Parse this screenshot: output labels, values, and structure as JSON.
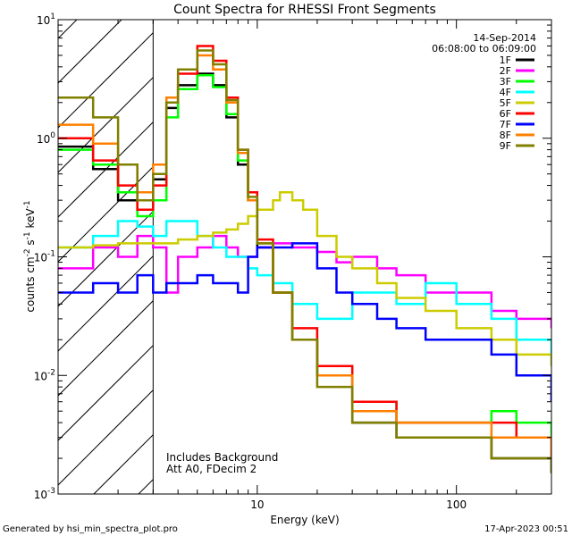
{
  "chart_data": {
    "type": "line",
    "title": "Count Spectra for RHESSI Front Segments",
    "xlabel": "Energy (keV)",
    "ylabel_parts": [
      "counts cm",
      "-2",
      " s",
      "-1",
      " keV",
      "-1"
    ],
    "x_scale": "log",
    "y_scale": "log",
    "xlim": [
      1.0,
      300.0
    ],
    "ylim": [
      0.001,
      10.0
    ],
    "x_tick_labels": [
      {
        "value": 10,
        "label": "10"
      },
      {
        "value": 100,
        "label": "100"
      }
    ],
    "y_tick_labels": [
      {
        "value": 10,
        "base": "10",
        "exp": "1"
      },
      {
        "value": 1,
        "base": "10",
        "exp": "0"
      },
      {
        "value": 0.1,
        "base": "10",
        "exp": "-1"
      },
      {
        "value": 0.01,
        "base": "10",
        "exp": "-2"
      },
      {
        "value": 0.001,
        "base": "10",
        "exp": "-3"
      }
    ],
    "date": "14-Sep-2014",
    "time_range": "06:08:00 to 06:09:00",
    "annotation_lines": [
      "Includes Background",
      "Att A0, FDecim 2"
    ],
    "excluded_region_max_keV": 3.0,
    "footer_left": "Generated by hsi_min_spectra_plot.pro",
    "footer_right": "17-Apr-2023 00:51",
    "series": [
      {
        "name": "1F",
        "color": "#000000",
        "points": [
          [
            1.0,
            0.85
          ],
          [
            1.5,
            0.55
          ],
          [
            2.0,
            0.3
          ],
          [
            2.5,
            0.25
          ],
          [
            3.0,
            0.45
          ],
          [
            3.5,
            1.8
          ],
          [
            4.0,
            2.8
          ],
          [
            5.0,
            3.5
          ],
          [
            6.0,
            2.8
          ],
          [
            7.0,
            1.5
          ],
          [
            8.0,
            0.6
          ],
          [
            9.0,
            0.3
          ],
          [
            10.0,
            0.12
          ],
          [
            12.0,
            0.05
          ],
          [
            15.0,
            0.02
          ],
          [
            20.0,
            0.01
          ],
          [
            30.0,
            0.004
          ],
          [
            50.0,
            0.003
          ],
          [
            70.0,
            0.003
          ],
          [
            100.0,
            0.003
          ],
          [
            150.0,
            0.002
          ],
          [
            200.0,
            0.002
          ],
          [
            300.0,
            0.0015
          ]
        ]
      },
      {
        "name": "2F",
        "color": "#ff00ff",
        "points": [
          [
            1.0,
            0.08
          ],
          [
            1.5,
            0.12
          ],
          [
            2.0,
            0.1
          ],
          [
            2.5,
            0.15
          ],
          [
            3.0,
            0.12
          ],
          [
            3.5,
            0.05
          ],
          [
            4.0,
            0.1
          ],
          [
            5.0,
            0.12
          ],
          [
            6.0,
            0.15
          ],
          [
            7.0,
            0.12
          ],
          [
            8.0,
            0.1
          ],
          [
            10.0,
            0.12
          ],
          [
            12.0,
            0.13
          ],
          [
            15.0,
            0.12
          ],
          [
            20.0,
            0.11
          ],
          [
            25.0,
            0.09
          ],
          [
            30.0,
            0.1
          ],
          [
            40.0,
            0.08
          ],
          [
            50.0,
            0.07
          ],
          [
            70.0,
            0.05
          ],
          [
            100.0,
            0.05
          ],
          [
            150.0,
            0.035
          ],
          [
            200.0,
            0.03
          ],
          [
            300.0,
            0.025
          ]
        ]
      },
      {
        "name": "3F",
        "color": "#00ff00",
        "points": [
          [
            1.0,
            0.8
          ],
          [
            1.5,
            0.6
          ],
          [
            2.0,
            0.35
          ],
          [
            2.5,
            0.22
          ],
          [
            3.0,
            0.3
          ],
          [
            3.5,
            1.5
          ],
          [
            4.0,
            2.6
          ],
          [
            5.0,
            3.4
          ],
          [
            6.0,
            2.7
          ],
          [
            7.0,
            1.6
          ],
          [
            8.0,
            0.65
          ],
          [
            9.0,
            0.3
          ],
          [
            10.0,
            0.13
          ],
          [
            12.0,
            0.05
          ],
          [
            15.0,
            0.02
          ],
          [
            20.0,
            0.01
          ],
          [
            30.0,
            0.006
          ],
          [
            50.0,
            0.004
          ],
          [
            70.0,
            0.004
          ],
          [
            100.0,
            0.004
          ],
          [
            150.0,
            0.005
          ],
          [
            200.0,
            0.004
          ],
          [
            300.0,
            0.003
          ]
        ]
      },
      {
        "name": "4F",
        "color": "#00ffff",
        "points": [
          [
            1.0,
            0.12
          ],
          [
            1.5,
            0.15
          ],
          [
            2.0,
            0.2
          ],
          [
            2.5,
            0.18
          ],
          [
            3.0,
            0.15
          ],
          [
            3.5,
            0.2
          ],
          [
            4.0,
            0.2
          ],
          [
            5.0,
            0.15
          ],
          [
            6.0,
            0.12
          ],
          [
            7.0,
            0.1
          ],
          [
            8.0,
            0.1
          ],
          [
            9.0,
            0.08
          ],
          [
            10.0,
            0.07
          ],
          [
            12.0,
            0.06
          ],
          [
            15.0,
            0.04
          ],
          [
            20.0,
            0.03
          ],
          [
            30.0,
            0.05
          ],
          [
            50.0,
            0.04
          ],
          [
            70.0,
            0.06
          ],
          [
            100.0,
            0.04
          ],
          [
            150.0,
            0.03
          ],
          [
            200.0,
            0.02
          ],
          [
            300.0,
            0.012
          ]
        ]
      },
      {
        "name": "5F",
        "color": "#cccc00",
        "points": [
          [
            1.0,
            0.12
          ],
          [
            1.5,
            0.125
          ],
          [
            2.0,
            0.13
          ],
          [
            2.5,
            0.13
          ],
          [
            3.0,
            0.13
          ],
          [
            4.0,
            0.14
          ],
          [
            5.0,
            0.15
          ],
          [
            6.0,
            0.16
          ],
          [
            7.0,
            0.17
          ],
          [
            8.0,
            0.19
          ],
          [
            9.0,
            0.22
          ],
          [
            10.0,
            0.25
          ],
          [
            12.0,
            0.3
          ],
          [
            13.0,
            0.35
          ],
          [
            15.0,
            0.3
          ],
          [
            17.0,
            0.25
          ],
          [
            20.0,
            0.15
          ],
          [
            25.0,
            0.1
          ],
          [
            30.0,
            0.08
          ],
          [
            40.0,
            0.06
          ],
          [
            50.0,
            0.045
          ],
          [
            70.0,
            0.035
          ],
          [
            100.0,
            0.025
          ],
          [
            150.0,
            0.02
          ],
          [
            200.0,
            0.015
          ],
          [
            300.0,
            0.012
          ]
        ]
      },
      {
        "name": "6F",
        "color": "#ff0000",
        "points": [
          [
            1.0,
            1.0
          ],
          [
            1.5,
            0.65
          ],
          [
            2.0,
            0.4
          ],
          [
            2.5,
            0.25
          ],
          [
            3.0,
            0.4
          ],
          [
            3.5,
            2.0
          ],
          [
            4.0,
            3.5
          ],
          [
            5.0,
            6.0
          ],
          [
            6.0,
            4.5
          ],
          [
            7.0,
            2.2
          ],
          [
            8.0,
            0.8
          ],
          [
            9.0,
            0.35
          ],
          [
            10.0,
            0.14
          ],
          [
            12.0,
            0.05
          ],
          [
            15.0,
            0.025
          ],
          [
            20.0,
            0.012
          ],
          [
            30.0,
            0.006
          ],
          [
            50.0,
            0.004
          ],
          [
            70.0,
            0.004
          ],
          [
            100.0,
            0.004
          ],
          [
            150.0,
            0.004
          ],
          [
            200.0,
            0.003
          ],
          [
            300.0,
            0.002
          ]
        ]
      },
      {
        "name": "7F",
        "color": "#0000ff",
        "points": [
          [
            1.0,
            0.05
          ],
          [
            1.5,
            0.06
          ],
          [
            2.0,
            0.05
          ],
          [
            2.5,
            0.07
          ],
          [
            3.0,
            0.05
          ],
          [
            3.5,
            0.06
          ],
          [
            4.0,
            0.06
          ],
          [
            5.0,
            0.07
          ],
          [
            6.0,
            0.06
          ],
          [
            7.0,
            0.06
          ],
          [
            8.0,
            0.05
          ],
          [
            9.0,
            0.1
          ],
          [
            10.0,
            0.12
          ],
          [
            12.0,
            0.12
          ],
          [
            15.0,
            0.13
          ],
          [
            20.0,
            0.08
          ],
          [
            25.0,
            0.05
          ],
          [
            30.0,
            0.04
          ],
          [
            40.0,
            0.03
          ],
          [
            50.0,
            0.025
          ],
          [
            70.0,
            0.02
          ],
          [
            100.0,
            0.02
          ],
          [
            150.0,
            0.015
          ],
          [
            200.0,
            0.01
          ],
          [
            300.0,
            0.006
          ]
        ]
      },
      {
        "name": "8F",
        "color": "#ff8000",
        "points": [
          [
            1.0,
            1.3
          ],
          [
            1.5,
            0.9
          ],
          [
            2.0,
            0.6
          ],
          [
            2.5,
            0.35
          ],
          [
            3.0,
            0.6
          ],
          [
            3.5,
            2.2
          ],
          [
            4.0,
            3.8
          ],
          [
            5.0,
            5.0
          ],
          [
            6.0,
            3.8
          ],
          [
            7.0,
            2.0
          ],
          [
            8.0,
            0.75
          ],
          [
            9.0,
            0.3
          ],
          [
            10.0,
            0.13
          ],
          [
            12.0,
            0.05
          ],
          [
            15.0,
            0.02
          ],
          [
            20.0,
            0.01
          ],
          [
            30.0,
            0.005
          ],
          [
            50.0,
            0.004
          ],
          [
            70.0,
            0.004
          ],
          [
            100.0,
            0.004
          ],
          [
            150.0,
            0.003
          ],
          [
            200.0,
            0.003
          ],
          [
            300.0,
            0.002
          ]
        ]
      },
      {
        "name": "9F",
        "color": "#808000",
        "points": [
          [
            1.0,
            2.2
          ],
          [
            1.5,
            1.5
          ],
          [
            2.0,
            0.6
          ],
          [
            2.5,
            0.3
          ],
          [
            3.0,
            0.5
          ],
          [
            3.5,
            2.0
          ],
          [
            4.0,
            3.8
          ],
          [
            5.0,
            5.5
          ],
          [
            6.0,
            4.2
          ],
          [
            7.0,
            2.1
          ],
          [
            8.0,
            0.8
          ],
          [
            9.0,
            0.32
          ],
          [
            10.0,
            0.13
          ],
          [
            12.0,
            0.05
          ],
          [
            15.0,
            0.02
          ],
          [
            20.0,
            0.008
          ],
          [
            30.0,
            0.004
          ],
          [
            50.0,
            0.003
          ],
          [
            70.0,
            0.003
          ],
          [
            100.0,
            0.003
          ],
          [
            150.0,
            0.002
          ],
          [
            200.0,
            0.002
          ],
          [
            300.0,
            0.0015
          ]
        ]
      }
    ]
  }
}
